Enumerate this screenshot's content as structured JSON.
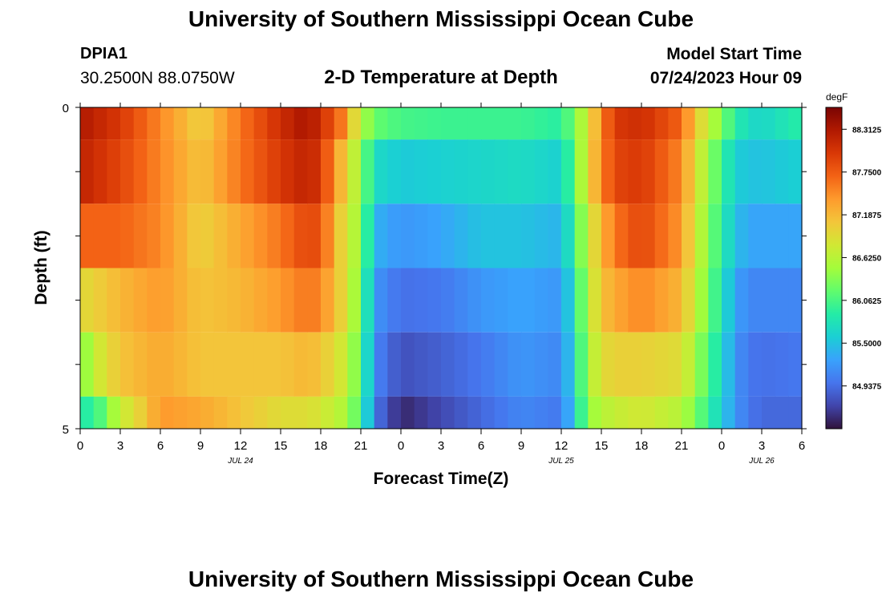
{
  "header": {
    "title": "University of Southern Mississippi Ocean Cube",
    "station": "DPIA1",
    "coords": "30.2500N  88.0750W",
    "subtitle": "2-D Temperature at Depth",
    "model_start_label": "Model Start Time",
    "model_start_value": "07/24/2023 Hour 09"
  },
  "footer": {
    "title": "University of Southern Mississippi Ocean Cube"
  },
  "colorbar": {
    "unit": "degF",
    "labels": [
      "88.3125",
      "87.7500",
      "87.1875",
      "86.6250",
      "86.0625",
      "85.5000",
      "84.9375"
    ],
    "min": 84.375,
    "max": 88.6,
    "stops": [
      "#30123b",
      "#4145ab",
      "#4675ed",
      "#39a2fc",
      "#1bcfd4",
      "#24eca6",
      "#61fc6c",
      "#a4fc3b",
      "#d1e834",
      "#f3c63a",
      "#fe9b2d",
      "#f36315",
      "#d93806",
      "#b11901",
      "#7a0403"
    ]
  },
  "chart_data": {
    "type": "heatmap",
    "title": "2-D Temperature at Depth",
    "xlabel": "Forecast Time(Z)",
    "ylabel": "Depth (ft)",
    "x_unit": "hours from 00Z Jul 24",
    "xlim": [
      0,
      54
    ],
    "ylim": [
      0,
      5
    ],
    "x_ticks": [
      0,
      3,
      6,
      9,
      12,
      15,
      18,
      21,
      24,
      27,
      30,
      33,
      36,
      39,
      42,
      45,
      48,
      51,
      54
    ],
    "x_tick_labels": [
      "0",
      "3",
      "6",
      "9",
      "12",
      "15",
      "18",
      "21",
      "0",
      "3",
      "6",
      "9",
      "12",
      "15",
      "18",
      "21",
      "0",
      "3",
      "6"
    ],
    "y_tick_labels": [
      {
        "depth": 0,
        "label": "0"
      },
      {
        "depth": 5,
        "label": "5"
      }
    ],
    "date_labels": [
      {
        "hour": 12,
        "label": "JUL 24"
      },
      {
        "hour": 36,
        "label": "JUL 25"
      },
      {
        "hour": 51,
        "label": "JUL 26"
      }
    ],
    "depth_bands": [
      [
        0,
        0.5
      ],
      [
        0.5,
        1.5
      ],
      [
        1.5,
        2.5
      ],
      [
        2.5,
        3.5
      ],
      [
        3.5,
        4.5
      ],
      [
        4.5,
        5
      ]
    ],
    "series": [
      {
        "name": "0 ft",
        "times": [
          0,
          3,
          6,
          9,
          12,
          15,
          17,
          18,
          19.5,
          21,
          22,
          24,
          27,
          30,
          33,
          36,
          37,
          38,
          39,
          40,
          42,
          45,
          46,
          48,
          49,
          50,
          51,
          54
        ],
        "temps": [
          88.3,
          88.0,
          87.5,
          87.0,
          87.6,
          88.1,
          88.35,
          88.1,
          87.6,
          86.6,
          86.2,
          86.05,
          86.0,
          86.0,
          86.0,
          85.9,
          86.3,
          86.8,
          87.5,
          88.0,
          88.1,
          87.7,
          87.1,
          86.3,
          85.9,
          85.7,
          85.65,
          85.9
        ]
      },
      {
        "name": "1 ft",
        "times": [
          0,
          3,
          6,
          9,
          12,
          15,
          17,
          18,
          19.5,
          21,
          22,
          24,
          27,
          30,
          33,
          36,
          37,
          38,
          39,
          40,
          42,
          45,
          46,
          48,
          49,
          50,
          51,
          54
        ],
        "temps": [
          88.2,
          87.9,
          87.5,
          87.1,
          87.6,
          88.0,
          88.2,
          88.0,
          87.2,
          86.4,
          85.7,
          85.55,
          85.6,
          85.65,
          85.7,
          85.6,
          86.2,
          86.9,
          87.5,
          87.9,
          88.0,
          87.5,
          86.9,
          86.0,
          85.6,
          85.5,
          85.5,
          85.6
        ]
      },
      {
        "name": "2 ft",
        "times": [
          0,
          3,
          6,
          9,
          12,
          15,
          17,
          18,
          19.5,
          21,
          22,
          24,
          27,
          30,
          33,
          36,
          37,
          38,
          39,
          40,
          42,
          45,
          46,
          48,
          49,
          50,
          51,
          54
        ],
        "temps": [
          87.7,
          87.7,
          87.5,
          87.0,
          87.3,
          87.6,
          87.9,
          87.8,
          87.0,
          86.4,
          85.4,
          85.2,
          85.3,
          85.5,
          85.5,
          85.4,
          86.0,
          86.7,
          87.2,
          87.6,
          87.9,
          87.4,
          86.8,
          85.9,
          85.5,
          85.3,
          85.3,
          85.3
        ]
      },
      {
        "name": "3 ft",
        "times": [
          0,
          3,
          6,
          9,
          12,
          15,
          17,
          18,
          19.5,
          21,
          22,
          24,
          27,
          30,
          33,
          36,
          37,
          38,
          39,
          40,
          42,
          45,
          46,
          48,
          49,
          50,
          51,
          54
        ],
        "temps": [
          86.9,
          87.2,
          87.4,
          87.1,
          87.2,
          87.4,
          87.6,
          87.5,
          87.0,
          86.3,
          85.2,
          84.95,
          85.0,
          85.2,
          85.3,
          85.2,
          85.8,
          86.6,
          87.1,
          87.3,
          87.5,
          87.2,
          86.7,
          85.8,
          85.3,
          85.1,
          85.1,
          85.1
        ]
      },
      {
        "name": "4 ft",
        "times": [
          0,
          1.5,
          3,
          6,
          9,
          12,
          15,
          17,
          18,
          19.5,
          21,
          22,
          24,
          27,
          30,
          33,
          36,
          37,
          38,
          39,
          40,
          42,
          45,
          46,
          48,
          49,
          50,
          51,
          54
        ],
        "temps": [
          86.3,
          86.8,
          87.1,
          87.3,
          87.1,
          87.1,
          87.1,
          87.2,
          87.1,
          86.8,
          86.2,
          85.1,
          84.75,
          84.85,
          85.0,
          85.2,
          85.1,
          85.7,
          86.5,
          86.9,
          87.0,
          87.0,
          86.9,
          86.5,
          85.7,
          85.2,
          85.0,
          84.95,
          85.0
        ]
      },
      {
        "name": "5 ft",
        "times": [
          0,
          1.5,
          3,
          4.5,
          6,
          9,
          12,
          15,
          17,
          18,
          19.5,
          21,
          22,
          24,
          27,
          30,
          33,
          36,
          37,
          38,
          39,
          40,
          42,
          45,
          46,
          48,
          49,
          50,
          51,
          54
        ],
        "temps": [
          85.8,
          86.1,
          86.7,
          87.0,
          87.4,
          87.3,
          87.1,
          86.9,
          86.9,
          86.8,
          86.6,
          86.1,
          85.0,
          84.5,
          84.7,
          84.9,
          85.1,
          85.0,
          85.6,
          86.4,
          86.6,
          86.7,
          86.8,
          86.6,
          86.3,
          85.6,
          85.2,
          85.0,
          84.9,
          84.9
        ]
      }
    ]
  }
}
